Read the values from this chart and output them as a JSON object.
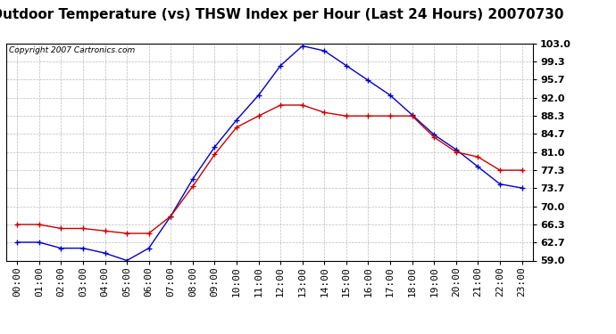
{
  "title": "Outdoor Temperature (vs) THSW Index per Hour (Last 24 Hours) 20070730",
  "copyright": "Copyright 2007 Cartronics.com",
  "x_labels": [
    "00:00",
    "01:00",
    "02:00",
    "03:00",
    "04:00",
    "05:00",
    "06:00",
    "07:00",
    "08:00",
    "09:00",
    "10:00",
    "11:00",
    "12:00",
    "13:00",
    "14:00",
    "15:00",
    "16:00",
    "17:00",
    "18:00",
    "19:00",
    "20:00",
    "21:00",
    "22:00",
    "23:00"
  ],
  "y_ticks": [
    59.0,
    62.7,
    66.3,
    70.0,
    73.7,
    77.3,
    81.0,
    84.7,
    88.3,
    92.0,
    95.7,
    99.3,
    103.0
  ],
  "y_min": 59.0,
  "y_max": 103.0,
  "blue_data": [
    62.7,
    62.7,
    61.5,
    61.5,
    60.5,
    59.0,
    61.5,
    68.0,
    75.5,
    82.0,
    87.5,
    92.5,
    98.5,
    102.5,
    101.5,
    98.5,
    95.5,
    92.5,
    88.5,
    84.5,
    81.5,
    78.0,
    74.5,
    73.7
  ],
  "red_data": [
    66.3,
    66.3,
    65.5,
    65.5,
    65.0,
    64.5,
    64.5,
    68.0,
    74.0,
    80.5,
    86.0,
    88.3,
    90.5,
    90.5,
    89.0,
    88.3,
    88.3,
    88.3,
    88.3,
    84.0,
    81.0,
    80.0,
    77.3,
    77.3
  ],
  "blue_color": "#0000cc",
  "red_color": "#cc0000",
  "background_color": "#ffffff",
  "grid_color": "#aaaaaa",
  "title_fontsize": 11,
  "copyright_fontsize": 6.5,
  "tick_fontsize": 8,
  "ytick_fontsize": 8
}
